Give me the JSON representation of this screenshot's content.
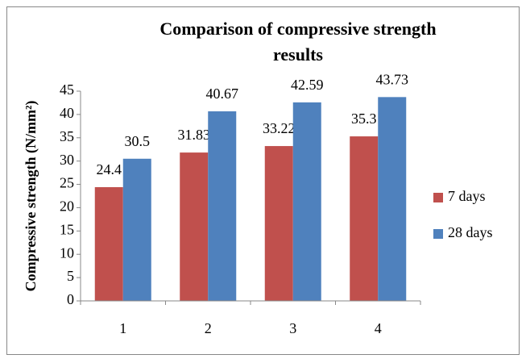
{
  "chart_data": {
    "type": "bar",
    "title": [
      "Comparison of compressive strength",
      "results"
    ],
    "y_label": "Compressive strength (N/mm²)",
    "categories": [
      "1",
      "2",
      "3",
      "4"
    ],
    "series": [
      {
        "name": "7 days",
        "color": "#c0504d",
        "values": [
          24.4,
          31.83,
          33.22,
          35.3
        ]
      },
      {
        "name": "28 days",
        "color": "#4f81bd",
        "values": [
          30.5,
          40.67,
          42.59,
          43.73
        ]
      }
    ],
    "ylim": [
      0,
      45
    ],
    "yticks": [
      0,
      5,
      10,
      15,
      20,
      25,
      30,
      35,
      40,
      45
    ],
    "legend": "right"
  }
}
